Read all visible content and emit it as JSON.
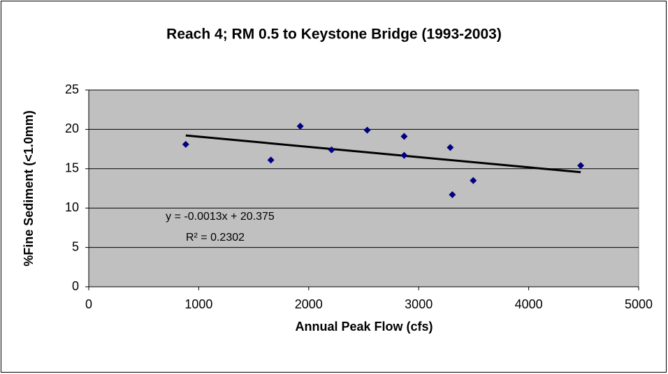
{
  "chart_data": {
    "type": "scatter",
    "title": "Reach 4; RM 0.5 to Keystone Bridge (1993-2003)",
    "x_label": "Annual Peak Flow (cfs)",
    "y_label": "%Fine Sediment (<1.0mm)",
    "series": [
      {
        "color": "#000080",
        "x": [
          882,
          1656,
          1923,
          2208,
          2532,
          2868,
          2868,
          3287,
          3306,
          3496,
          4473
        ],
        "values": [
          18.1,
          16.1,
          20.4,
          17.4,
          19.9,
          19.1,
          16.7,
          17.7,
          11.7,
          13.5,
          15.4
        ]
      }
    ],
    "trendline": {
      "slope": -0.0013,
      "intercept": 20.375,
      "equation": "y = -0.0013x + 20.375",
      "r_squared": "R² = 0.2302",
      "color": "#000000"
    },
    "xlim": [
      0,
      5000
    ],
    "xticks": [
      0,
      1000,
      2000,
      3000,
      4000,
      5000
    ],
    "ylim": [
      0,
      25
    ],
    "yticks": [
      0,
      5,
      10,
      15,
      20,
      25
    ],
    "grid": true
  }
}
